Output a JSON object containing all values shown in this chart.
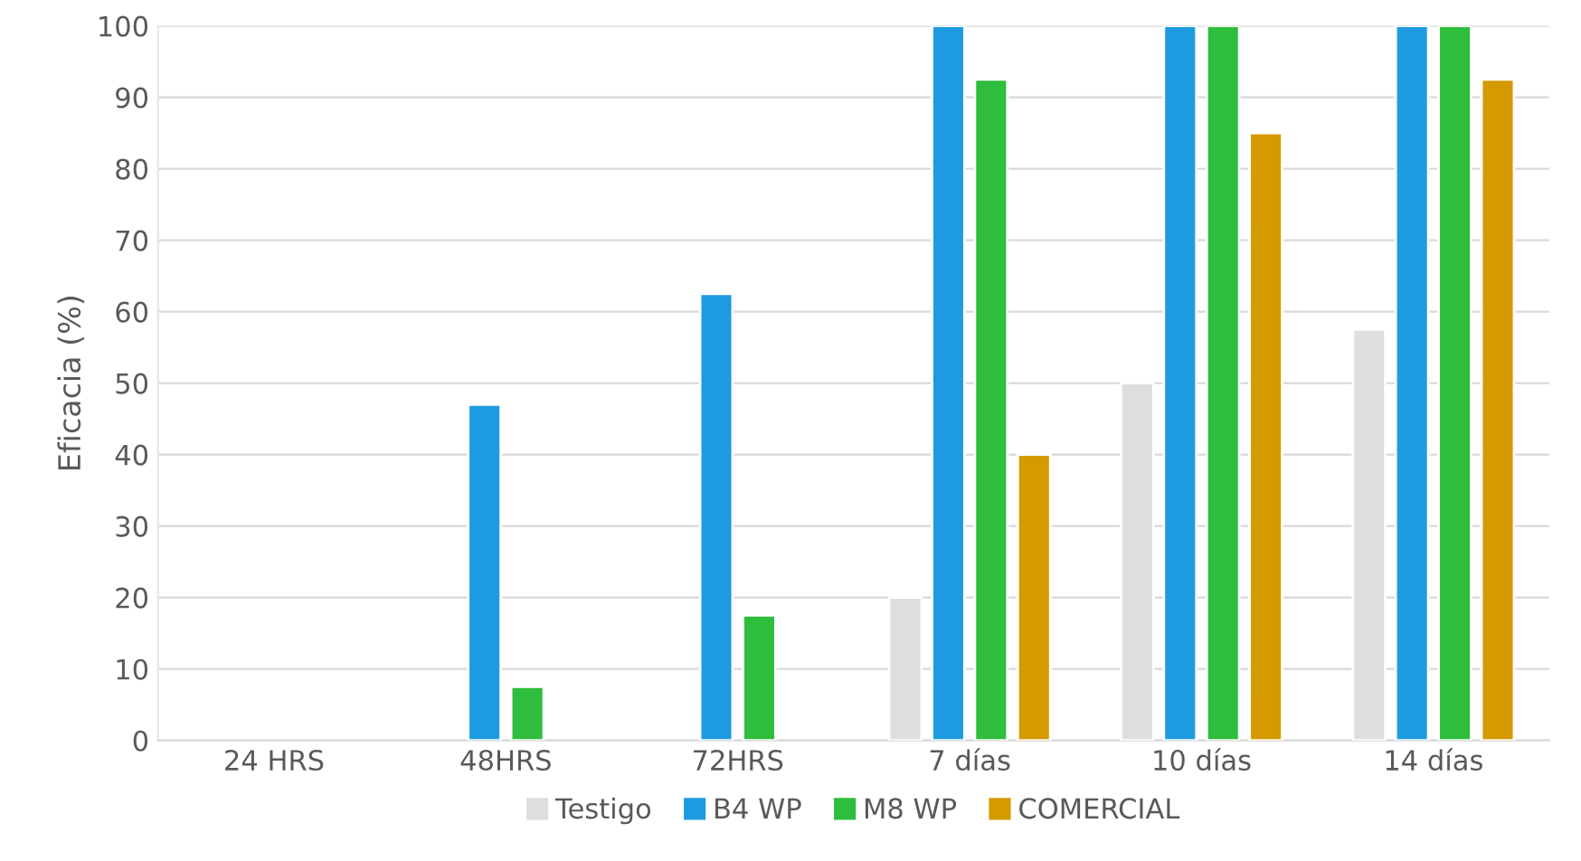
{
  "chart_data": {
    "type": "bar",
    "ylabel": "Eficacia (%)",
    "categories": [
      "24 HRS",
      "48HRS",
      "72HRS",
      "7 días",
      "10 días",
      "14 días"
    ],
    "series": [
      {
        "name": "Testigo",
        "color": "#dedede",
        "values": [
          null,
          null,
          null,
          20,
          50,
          57.5
        ]
      },
      {
        "name": "B4 WP",
        "color": "#1e9be0",
        "values": [
          null,
          47,
          62.5,
          100,
          100,
          100
        ]
      },
      {
        "name": "M8 WP",
        "color": "#2ebd3c",
        "values": [
          null,
          7.5,
          17.5,
          92.5,
          100,
          100
        ]
      },
      {
        "name": "COMERCIAL",
        "color": "#d49a00",
        "values": [
          null,
          null,
          null,
          40,
          85,
          92.5
        ]
      }
    ],
    "ylim": [
      0,
      100
    ],
    "yticks": [
      0,
      10,
      20,
      30,
      40,
      50,
      60,
      70,
      80,
      90,
      100
    ],
    "grid": "y",
    "legend": "bottom"
  }
}
